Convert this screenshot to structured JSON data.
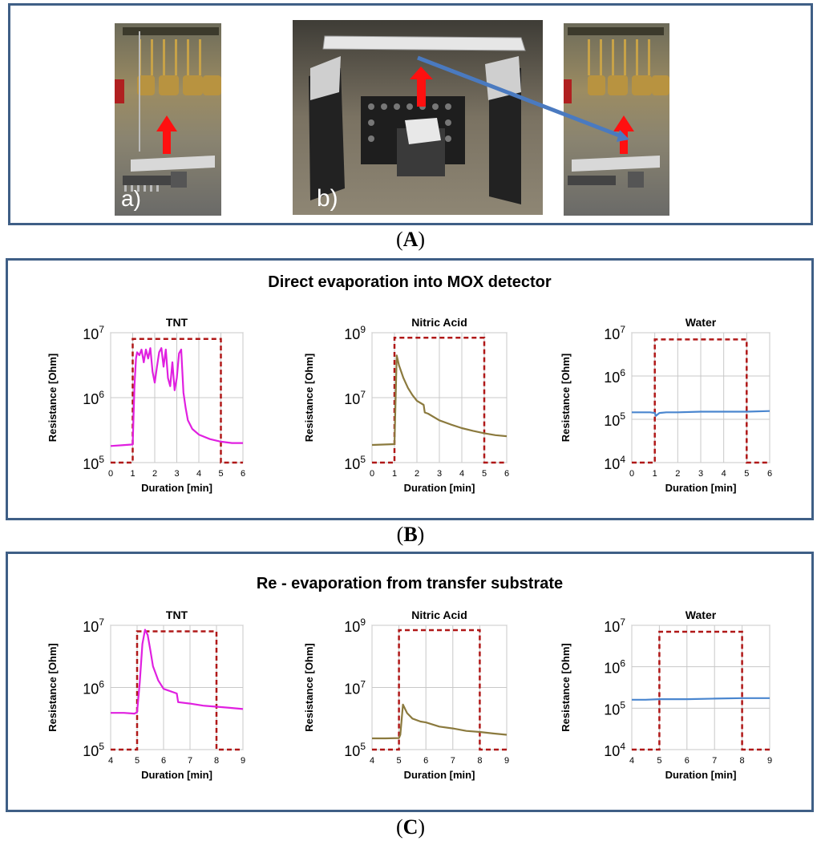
{
  "panels": {
    "A": {
      "label": "A",
      "photo_labels": [
        "a)",
        "b)"
      ]
    },
    "B": {
      "label": "B",
      "title": "Direct evaporation into MOX detector"
    },
    "C": {
      "label": "C",
      "title": "Re - evaporation from transfer substrate"
    }
  },
  "colors": {
    "frame": "#3f5f86",
    "pulse": "#b01818",
    "tnt": "#e020e0",
    "nitric": "#8b7a3e",
    "water": "#4a86cf"
  },
  "chart_data": [
    {
      "id": "B-TNT",
      "type": "line",
      "title": "TNT",
      "xlabel": "Duration [min]",
      "ylabel": "Resistance  [Ohm]",
      "log_y": true,
      "xlim": [
        0,
        6
      ],
      "ylim": [
        100000,
        10000000
      ],
      "xticks": [
        "0",
        "1",
        "2",
        "3",
        "4",
        "5",
        "6"
      ],
      "yticks": [
        {
          "base": "10",
          "exp": "5"
        },
        {
          "base": "10",
          "exp": "6"
        },
        {
          "base": "10",
          "exp": "7"
        }
      ],
      "series": [
        {
          "style": "pulse",
          "x": [
            0,
            1,
            1,
            5,
            5,
            6
          ],
          "y": [
            100000,
            100000,
            8000000,
            8000000,
            100000,
            100000
          ]
        },
        {
          "style": "tnt",
          "x": [
            0,
            0.5,
            1.0,
            1.08,
            1.15,
            1.2,
            1.3,
            1.4,
            1.5,
            1.6,
            1.7,
            1.8,
            1.9,
            2.0,
            2.1,
            2.2,
            2.3,
            2.4,
            2.5,
            2.6,
            2.7,
            2.8,
            2.9,
            3.0,
            3.1,
            3.2,
            3.3,
            3.4,
            3.5,
            3.7,
            4.0,
            4.5,
            5.0,
            5.5,
            6.0
          ],
          "y": [
            180000,
            185000,
            190000,
            1500000,
            4000000,
            5000000,
            4500000,
            5500000,
            3500000,
            5500000,
            4000000,
            5800000,
            2500000,
            1700000,
            3000000,
            5000000,
            5800000,
            3000000,
            5500000,
            2000000,
            1500000,
            3500000,
            1300000,
            2000000,
            4800000,
            5500000,
            1200000,
            700000,
            450000,
            330000,
            270000,
            230000,
            210000,
            200000,
            200000
          ]
        }
      ]
    },
    {
      "id": "B-Nitric",
      "type": "line",
      "title": "Nitric Acid",
      "xlabel": "Duration [min]",
      "ylabel": "Resistance [Ohm]",
      "log_y": true,
      "xlim": [
        0,
        6
      ],
      "ylim": [
        100000,
        1000000000
      ],
      "xticks": [
        "0",
        "1",
        "2",
        "3",
        "4",
        "5",
        "6"
      ],
      "yticks": [
        {
          "base": "10",
          "exp": "5"
        },
        {
          "base": "10",
          "exp": "7"
        },
        {
          "base": "10",
          "exp": "9"
        }
      ],
      "series": [
        {
          "style": "pulse",
          "x": [
            0,
            1,
            1,
            5,
            5,
            6
          ],
          "y": [
            100000,
            100000,
            700000000,
            700000000,
            100000,
            100000
          ]
        },
        {
          "style": "nitric",
          "x": [
            0,
            0.5,
            1.0,
            1.1,
            1.2,
            1.4,
            1.6,
            1.8,
            2.0,
            2.3,
            2.35,
            2.5,
            3.0,
            3.5,
            4.0,
            4.5,
            5.0,
            5.5,
            6.0
          ],
          "y": [
            350000,
            360000,
            370000,
            200000000,
            100000000,
            40000000,
            20000000,
            12000000,
            8000000,
            6000000,
            3500000,
            3200000,
            2000000,
            1500000,
            1150000,
            950000,
            800000,
            700000,
            650000
          ]
        }
      ]
    },
    {
      "id": "B-Water",
      "type": "line",
      "title": "Water",
      "xlabel": "Duration [min]",
      "ylabel": "Resistance  [Ohm]",
      "log_y": true,
      "xlim": [
        0,
        6
      ],
      "ylim": [
        10000,
        10000000
      ],
      "xticks": [
        "0",
        "1",
        "2",
        "3",
        "4",
        "5",
        "6"
      ],
      "yticks": [
        {
          "base": "10",
          "exp": "4"
        },
        {
          "base": "10",
          "exp": "5"
        },
        {
          "base": "10",
          "exp": "6"
        },
        {
          "base": "10",
          "exp": "7"
        }
      ],
      "series": [
        {
          "style": "pulse",
          "x": [
            0,
            1,
            1,
            5,
            5,
            6
          ],
          "y": [
            10000,
            10000,
            7000000,
            7000000,
            10000,
            10000
          ]
        },
        {
          "style": "water",
          "x": [
            0,
            0.8,
            1.0,
            1.05,
            1.2,
            1.5,
            2.0,
            3.0,
            4.0,
            5.0,
            6.0
          ],
          "y": [
            145000,
            145000,
            140000,
            120000,
            140000,
            145000,
            145000,
            150000,
            150000,
            150000,
            155000
          ]
        }
      ]
    },
    {
      "id": "C-TNT",
      "type": "line",
      "title": "TNT",
      "xlabel": "Duration [min]",
      "ylabel": "Resistance  [Ohm]",
      "log_y": true,
      "xlim": [
        4,
        9
      ],
      "ylim": [
        100000,
        10000000
      ],
      "xticks": [
        "4",
        "5",
        "6",
        "7",
        "8",
        "9"
      ],
      "yticks": [
        {
          "base": "10",
          "exp": "5"
        },
        {
          "base": "10",
          "exp": "6"
        },
        {
          "base": "10",
          "exp": "7"
        }
      ],
      "series": [
        {
          "style": "pulse",
          "x": [
            4,
            5,
            5,
            8,
            8,
            9
          ],
          "y": [
            100000,
            100000,
            8000000,
            8000000,
            100000,
            100000
          ]
        },
        {
          "style": "tnt",
          "x": [
            4,
            4.5,
            4.9,
            5.0,
            5.1,
            5.2,
            5.3,
            5.4,
            5.5,
            5.6,
            5.8,
            6.0,
            6.5,
            6.55,
            7.0,
            7.5,
            8.0,
            8.5,
            9.0
          ],
          "y": [
            390000,
            390000,
            380000,
            400000,
            1200000,
            5000000,
            8500000,
            7000000,
            4000000,
            2200000,
            1300000,
            950000,
            800000,
            580000,
            550000,
            510000,
            490000,
            470000,
            450000
          ]
        }
      ]
    },
    {
      "id": "C-Nitric",
      "type": "line",
      "title": "Nitric Acid",
      "xlabel": "Duration [min]",
      "ylabel": "Resistance [Ohm]",
      "log_y": true,
      "xlim": [
        4,
        9
      ],
      "ylim": [
        100000,
        1000000000
      ],
      "xticks": [
        "4",
        "5",
        "6",
        "7",
        "8",
        "9"
      ],
      "yticks": [
        {
          "base": "10",
          "exp": "5"
        },
        {
          "base": "10",
          "exp": "7"
        },
        {
          "base": "10",
          "exp": "9"
        }
      ],
      "series": [
        {
          "style": "pulse",
          "x": [
            4,
            5,
            5,
            8,
            8,
            9
          ],
          "y": [
            100000,
            100000,
            700000000,
            700000000,
            100000,
            100000
          ]
        },
        {
          "style": "nitric",
          "x": [
            4,
            4.5,
            5.0,
            5.05,
            5.15,
            5.3,
            5.5,
            5.8,
            6.0,
            6.5,
            7.0,
            7.5,
            8.0,
            8.5,
            9.0
          ],
          "y": [
            230000,
            230000,
            235000,
            300000,
            2800000,
            1500000,
            1000000,
            800000,
            750000,
            550000,
            480000,
            400000,
            370000,
            330000,
            300000
          ]
        }
      ]
    },
    {
      "id": "C-Water",
      "type": "line",
      "title": "Water",
      "xlabel": "Duration [min]",
      "ylabel": "Resistance  [Ohm]",
      "log_y": true,
      "xlim": [
        4,
        9
      ],
      "ylim": [
        10000,
        10000000
      ],
      "xticks": [
        "4",
        "5",
        "6",
        "7",
        "8",
        "9"
      ],
      "yticks": [
        {
          "base": "10",
          "exp": "4"
        },
        {
          "base": "10",
          "exp": "5"
        },
        {
          "base": "10",
          "exp": "6"
        },
        {
          "base": "10",
          "exp": "7"
        }
      ],
      "series": [
        {
          "style": "pulse",
          "x": [
            4,
            5,
            5,
            8,
            8,
            9
          ],
          "y": [
            10000,
            10000,
            7000000,
            7000000,
            10000,
            10000
          ]
        },
        {
          "style": "water",
          "x": [
            4,
            4.5,
            5,
            6,
            7,
            8,
            8.5,
            9
          ],
          "y": [
            160000,
            160000,
            165000,
            165000,
            170000,
            175000,
            175000,
            175000
          ]
        }
      ]
    }
  ]
}
